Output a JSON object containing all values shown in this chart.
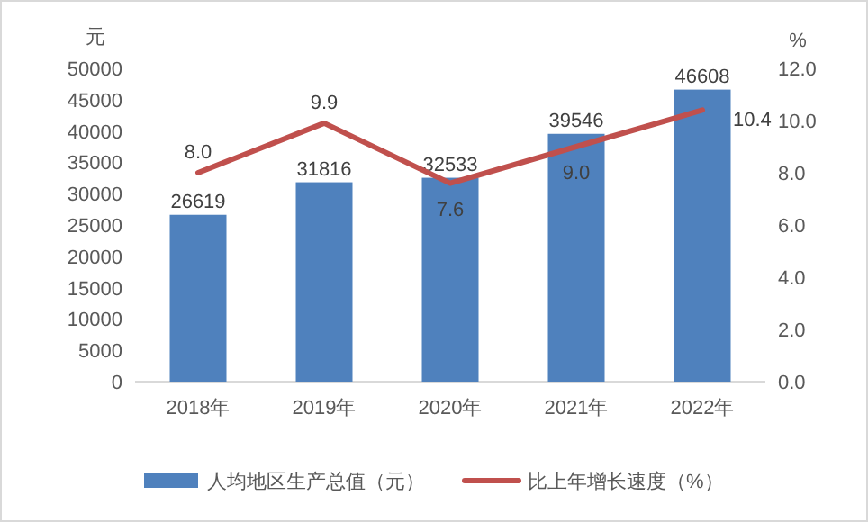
{
  "chart_data": {
    "type": "bar",
    "categories": [
      "2018年",
      "2019年",
      "2020年",
      "2021年",
      "2022年"
    ],
    "ylabel": "元",
    "y2label": "%",
    "ylim": [
      0,
      50000
    ],
    "yticks": [
      0,
      5000,
      10000,
      15000,
      20000,
      25000,
      30000,
      35000,
      40000,
      45000,
      50000
    ],
    "y2lim": [
      0,
      12
    ],
    "y2ticks": [
      {
        "value": 0,
        "label": "0.0"
      },
      {
        "value": 2,
        "label": "2.0"
      },
      {
        "value": 4,
        "label": "4.0"
      },
      {
        "value": 6,
        "label": "6.0"
      },
      {
        "value": 8,
        "label": "8.0"
      },
      {
        "value": 10,
        "label": "10.0"
      },
      {
        "value": 12,
        "label": "12.0"
      }
    ],
    "series": [
      {
        "name": "人均地区生产总值（元）",
        "color": "#4f81bd",
        "values": [
          26619,
          31816,
          32533,
          39546,
          46608
        ]
      },
      {
        "name": "比上年增长速度（%）",
        "type": "line",
        "axis": "y2",
        "color": "#c0504d",
        "values": [
          8.0,
          9.9,
          7.6,
          9.0,
          10.4
        ],
        "value_labels": [
          "8.0",
          "9.9",
          "7.6",
          "9.0",
          "10.4"
        ]
      }
    ],
    "data_labels": true,
    "legend": "bottom",
    "grid": false,
    "marker": "none"
  }
}
